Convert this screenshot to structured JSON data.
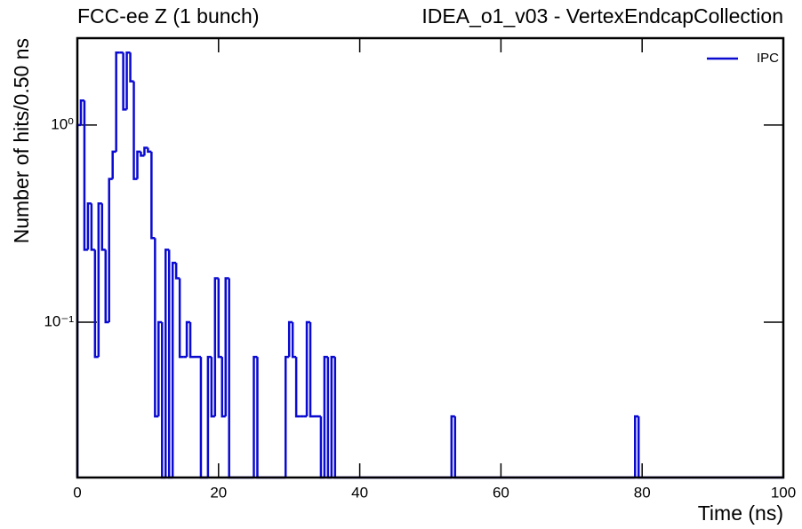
{
  "chart_data": {
    "type": "histogram",
    "annotation": "FCC-ee Z (1 bunch)",
    "title": "IDEA_o1_v03 - VertexEndcapCollection",
    "xlabel": "Time (ns)",
    "ylabel": "Number of hits/0.50 ns",
    "bins": [
      0,
      0.5,
      1,
      1.5,
      2,
      2.5,
      3,
      3.5,
      4,
      4.5,
      5,
      5.5,
      6,
      6.5,
      7,
      7.5,
      8,
      8.5,
      9,
      9.5,
      10,
      10.5,
      11,
      11.5,
      12,
      12.5,
      13,
      13.5,
      14,
      14.5,
      15,
      15.5,
      16,
      16.5,
      17,
      17.5,
      18,
      18.5,
      19,
      19.5,
      20,
      20.5,
      21,
      21.5,
      22,
      22.5,
      23,
      23.5,
      24,
      24.5,
      25,
      25.5,
      26,
      26.5,
      27,
      27.5,
      28,
      28.5,
      29,
      29.5,
      30,
      30.5,
      31,
      31.5,
      32,
      32.5,
      33,
      33.5,
      34,
      34.5,
      35,
      35.5,
      36,
      36.5,
      37,
      37.5,
      38,
      38.5,
      39,
      39.5,
      40,
      40.5,
      41,
      41.5,
      42,
      42.5,
      43,
      43.5,
      44,
      44.5,
      45,
      45.5,
      46,
      46.5,
      47,
      47.5,
      48,
      48.5,
      49,
      49.5,
      50,
      50.5,
      51,
      51.5,
      52,
      52.5,
      53,
      53.5,
      54,
      54.5,
      55,
      55.5,
      56,
      56.5,
      57,
      57.5,
      58,
      58.5,
      59,
      59.5,
      60,
      60.5,
      61,
      61.5,
      62,
      62.5,
      63,
      63.5,
      64,
      64.5,
      65,
      65.5,
      66,
      66.5,
      67,
      67.5,
      68,
      68.5,
      69,
      69.5,
      70,
      70.5,
      71,
      71.5,
      72,
      72.5,
      73,
      73.5,
      74,
      74.5,
      75,
      75.5,
      76,
      76.5,
      77,
      77.5,
      78,
      78.5,
      79,
      79.5,
      80,
      80.5,
      81,
      81.5,
      82,
      82.5,
      83,
      83.5,
      84,
      84.5,
      85,
      85.5,
      86,
      86.5,
      87,
      87.5,
      88,
      88.5,
      89,
      89.5,
      90,
      90.5,
      91,
      91.5,
      92,
      92.5,
      93,
      93.5,
      94,
      94.5,
      95,
      95.5,
      96,
      96.5,
      97,
      97.5,
      98,
      98.5,
      99,
      99.5,
      100
    ],
    "series": [
      {
        "name": "IPC",
        "color": "#0a0ad0",
        "values": [
          1.0,
          1.333,
          0.233,
          0.4,
          0.233,
          0.0667,
          0.4,
          0.233,
          0.1,
          0.533,
          0.733,
          2.333,
          2.333,
          1.2,
          2.333,
          1.667,
          0.533,
          0.733,
          0.7,
          0.767,
          0.733,
          0.267,
          0.0333,
          0.1,
          0,
          0.233,
          0,
          0.2,
          0.167,
          0.0667,
          0.0667,
          0.1,
          0.0667,
          0.0667,
          0.0667,
          0,
          0,
          0.0667,
          0.0333,
          0.167,
          0.0667,
          0.0333,
          0.167,
          0,
          0,
          0,
          0,
          0,
          0,
          0,
          0.0667,
          0,
          0,
          0,
          0,
          0,
          0,
          0,
          0,
          0.0667,
          0.1,
          0.0667,
          0.0333,
          0.0333,
          0.0333,
          0.1,
          0.0333,
          0.0333,
          0.0333,
          0,
          0.0667,
          0,
          0.0667,
          0,
          0,
          0,
          0,
          0,
          0,
          0,
          0,
          0,
          0,
          0,
          0,
          0,
          0,
          0,
          0,
          0,
          0,
          0,
          0,
          0,
          0,
          0,
          0,
          0,
          0,
          0,
          0,
          0,
          0,
          0,
          0,
          0,
          0.0333,
          0,
          0,
          0,
          0,
          0,
          0,
          0,
          0,
          0,
          0,
          0,
          0,
          0,
          0,
          0,
          0,
          0,
          0,
          0,
          0,
          0,
          0,
          0,
          0,
          0,
          0,
          0,
          0,
          0,
          0,
          0,
          0,
          0,
          0,
          0,
          0,
          0,
          0,
          0,
          0,
          0,
          0,
          0,
          0,
          0,
          0,
          0,
          0,
          0,
          0,
          0,
          0.0333,
          0,
          0,
          0,
          0,
          0,
          0,
          0,
          0,
          0,
          0,
          0,
          0,
          0,
          0,
          0,
          0,
          0,
          0,
          0,
          0,
          0,
          0,
          0,
          0,
          0,
          0,
          0,
          0,
          0,
          0,
          0,
          0,
          0,
          0,
          0,
          0,
          0,
          0,
          0,
          0,
          0
        ]
      }
    ],
    "xlim": [
      0,
      100
    ],
    "xticks": [
      0,
      20,
      40,
      60,
      80,
      100
    ],
    "ylim": [
      0.0163,
      2.76
    ],
    "yticks": [
      {
        "value": 0.1,
        "label": "10⁻¹"
      },
      {
        "value": 1,
        "label": "10⁰"
      }
    ],
    "log_y": true,
    "legend": "upper right"
  }
}
